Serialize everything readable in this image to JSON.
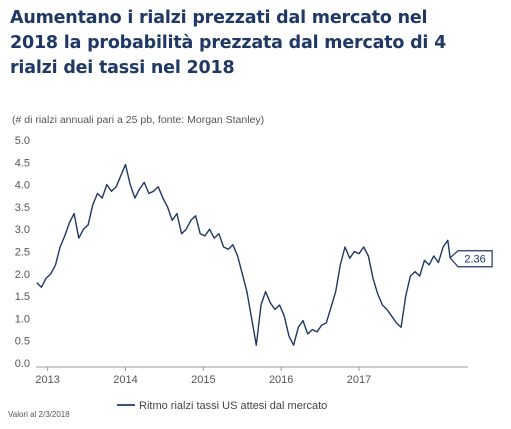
{
  "title": {
    "line1": "Aumentano i rialzi prezzati dal mercato nel",
    "line2": "2018 la probabilità prezzata dal mercato di 4",
    "line3": "rialzi dei tassi nel 2018"
  },
  "footnote": "Valori al 2/3/2018",
  "chart_data": {
    "type": "line",
    "subtitle": "(# di rialzi annuali pari a 25 pb, fonte: Morgan Stanley)",
    "ylim": [
      0,
      5
    ],
    "yticks": [
      "0.0",
      "0.5",
      "1.0",
      "1.5",
      "2.0",
      "2.5",
      "3.0",
      "3.5",
      "4.0",
      "4.5",
      "5.0"
    ],
    "xlim": [
      2012.85,
      2018.4
    ],
    "xticks": [
      {
        "label": "2013",
        "value": 2013.0
      },
      {
        "label": "2014",
        "value": 2014.0
      },
      {
        "label": "2015",
        "value": 2015.0
      },
      {
        "label": "2016",
        "value": 2016.0
      },
      {
        "label": "2017",
        "value": 2017.0
      }
    ],
    "grid": false,
    "legend_position": "bottom",
    "color": "#1f3864",
    "last_value_label": "2.36",
    "series": [
      {
        "name": "Ritmo rialzi tassi US attesi dal mercato",
        "x": [
          2012.86,
          2012.92,
          2012.98,
          2013.04,
          2013.1,
          2013.16,
          2013.22,
          2013.28,
          2013.34,
          2013.4,
          2013.46,
          2013.52,
          2013.58,
          2013.64,
          2013.7,
          2013.76,
          2013.82,
          2013.88,
          2013.94,
          2014.0,
          2014.06,
          2014.12,
          2014.18,
          2014.24,
          2014.3,
          2014.36,
          2014.42,
          2014.48,
          2014.54,
          2014.6,
          2014.66,
          2014.72,
          2014.78,
          2014.84,
          2014.9,
          2014.96,
          2015.02,
          2015.08,
          2015.14,
          2015.2,
          2015.26,
          2015.32,
          2015.38,
          2015.44,
          2015.5,
          2015.56,
          2015.62,
          2015.68,
          2015.74,
          2015.8,
          2015.86,
          2015.92,
          2015.98,
          2016.04,
          2016.1,
          2016.16,
          2016.22,
          2016.28,
          2016.34,
          2016.4,
          2016.46,
          2016.52,
          2016.58,
          2016.64,
          2016.7,
          2016.76,
          2016.82,
          2016.88,
          2016.94,
          2017.0,
          2017.06,
          2017.12,
          2017.18,
          2017.24,
          2017.3,
          2017.36,
          2017.42,
          2017.48,
          2017.54,
          2017.6,
          2017.66,
          2017.72,
          2017.78,
          2017.84,
          2017.9,
          2017.96,
          2018.02,
          2018.08,
          2018.14,
          2018.17
        ],
        "values": [
          1.8,
          1.7,
          1.9,
          2.0,
          2.2,
          2.6,
          2.85,
          3.15,
          3.35,
          2.8,
          3.0,
          3.1,
          3.55,
          3.8,
          3.7,
          4.0,
          3.85,
          3.95,
          4.2,
          4.45,
          4.0,
          3.7,
          3.9,
          4.05,
          3.8,
          3.85,
          3.95,
          3.7,
          3.5,
          3.2,
          3.35,
          2.9,
          3.0,
          3.2,
          3.3,
          2.9,
          2.85,
          3.0,
          2.8,
          2.9,
          2.6,
          2.55,
          2.65,
          2.4,
          2.0,
          1.6,
          1.0,
          0.4,
          1.3,
          1.6,
          1.35,
          1.2,
          1.3,
          1.05,
          0.6,
          0.4,
          0.8,
          0.95,
          0.65,
          0.75,
          0.7,
          0.85,
          0.9,
          1.25,
          1.6,
          2.2,
          2.6,
          2.35,
          2.5,
          2.45,
          2.6,
          2.4,
          1.9,
          1.55,
          1.3,
          1.2,
          1.05,
          0.9,
          0.8,
          1.5,
          1.95,
          2.05,
          1.95,
          2.3,
          2.2,
          2.4,
          2.25,
          2.6,
          2.75,
          2.36
        ]
      }
    ]
  }
}
